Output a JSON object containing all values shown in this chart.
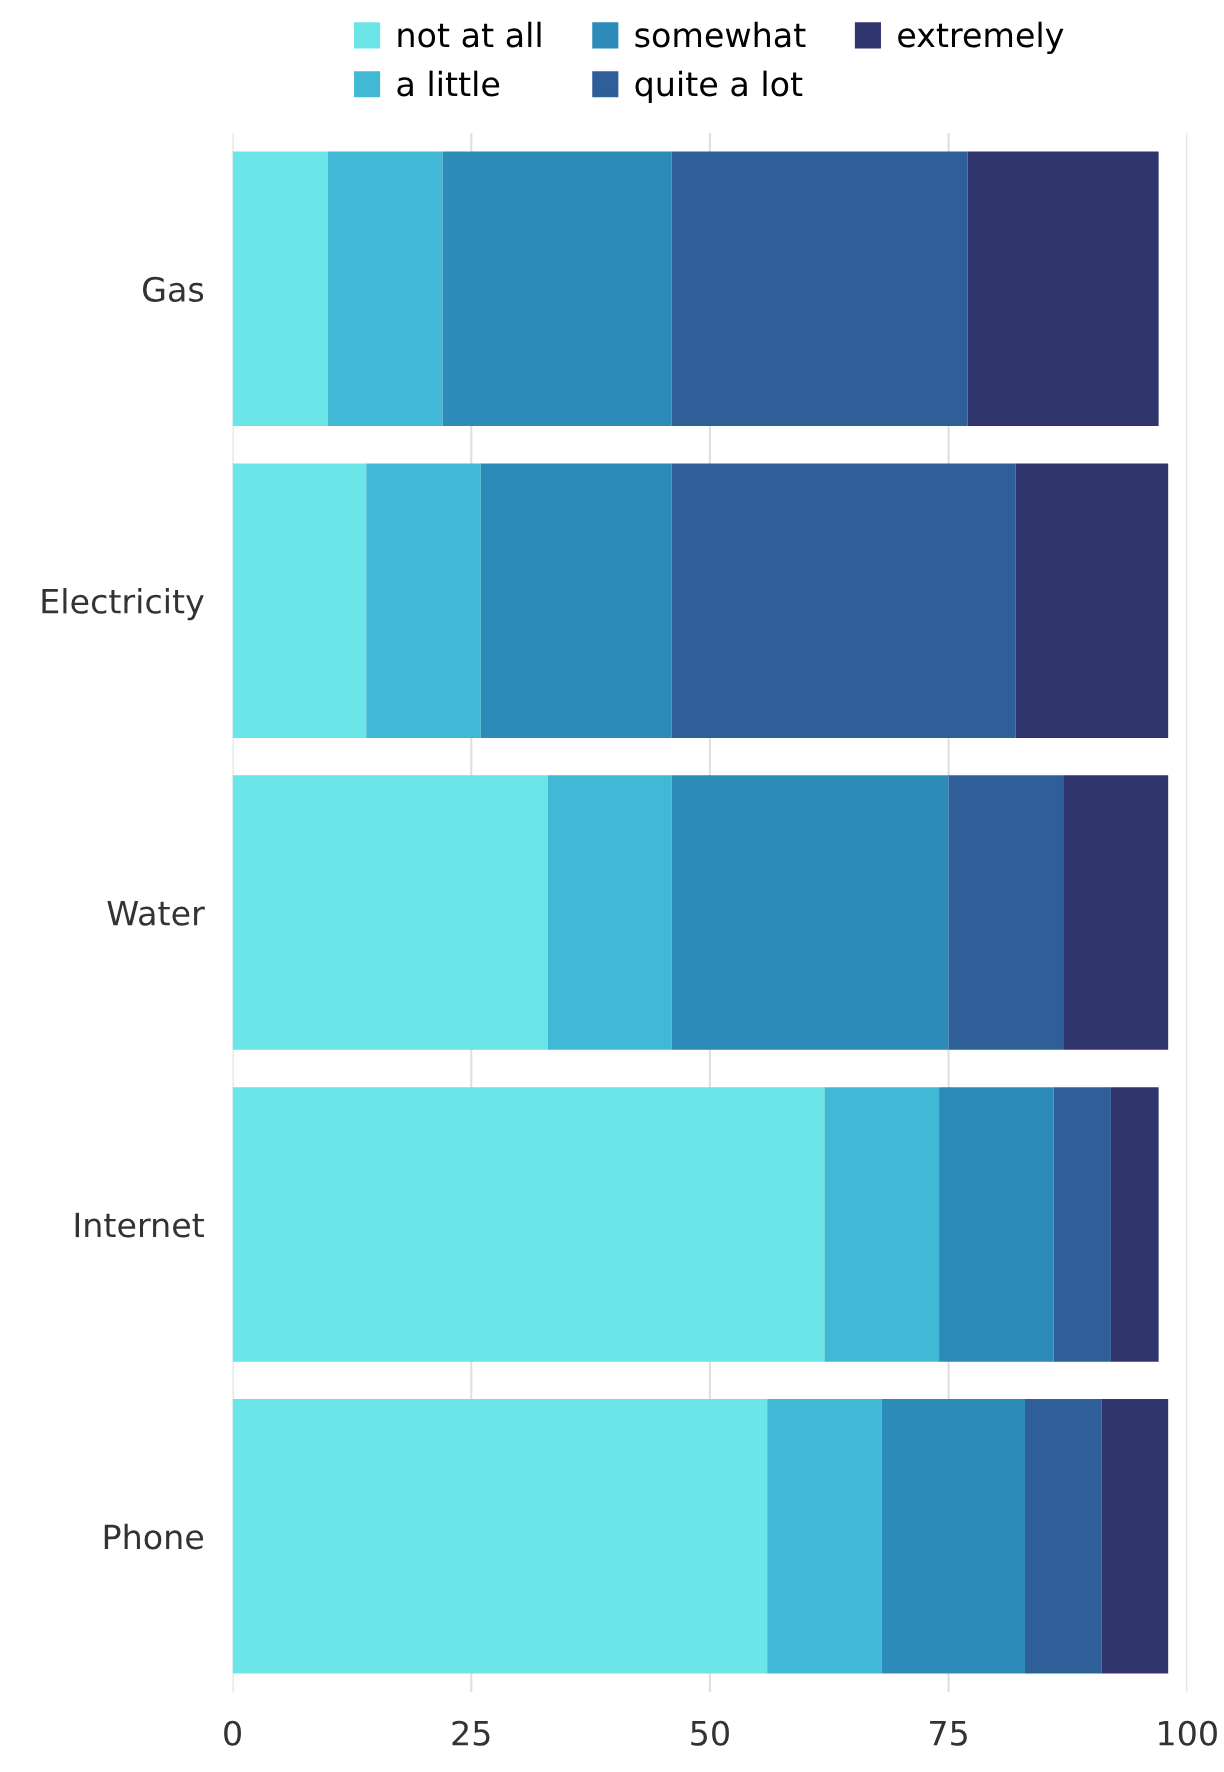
{
  "chart_data": {
    "type": "bar",
    "orientation": "horizontal",
    "stacked": true,
    "categories": [
      "Gas",
      "Electricity",
      "Water",
      "Internet",
      "Phone"
    ],
    "series": [
      {
        "name": "not at all",
        "color": "#6ce5e8",
        "values": [
          10,
          14,
          33,
          62,
          56
        ]
      },
      {
        "name": "a little",
        "color": "#41b8d5",
        "values": [
          12,
          12,
          13,
          12,
          12
        ]
      },
      {
        "name": "somewhat",
        "color": "#2d8bba",
        "values": [
          24,
          20,
          29,
          12,
          15
        ]
      },
      {
        "name": "quite a lot",
        "color": "#2f5f98",
        "values": [
          31,
          36,
          12,
          6,
          8
        ]
      },
      {
        "name": "extremely",
        "color": "#31356e",
        "values": [
          20,
          16,
          11,
          5,
          7
        ]
      }
    ],
    "xlim": [
      0,
      100
    ],
    "xticks": [
      0,
      25,
      50,
      75,
      100
    ],
    "grid": "x",
    "legend": "top"
  }
}
